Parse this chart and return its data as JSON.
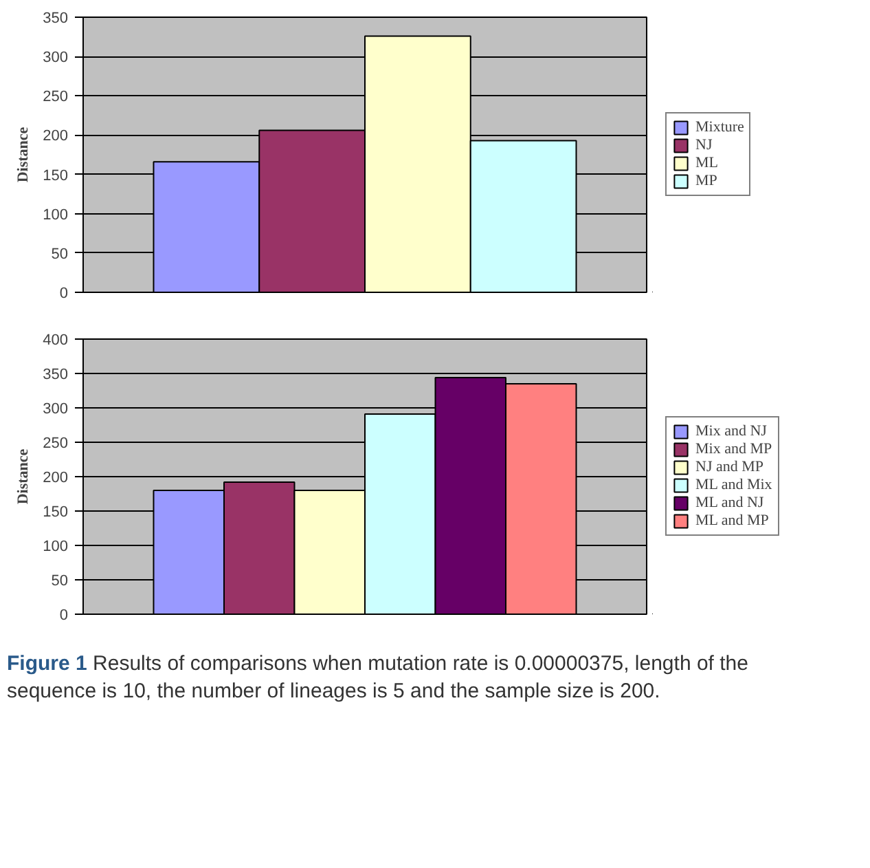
{
  "chart_data": [
    {
      "type": "bar",
      "categories": [
        null
      ],
      "ylabel": "Distance",
      "ylim": [
        0,
        350
      ],
      "yticks": [
        0,
        50,
        100,
        150,
        200,
        250,
        300,
        350
      ],
      "grid": "y",
      "legend": "right",
      "tick_labels": "y",
      "series": [
        {
          "name": "Mixture",
          "color": "#9999ff",
          "values": [
            166
          ]
        },
        {
          "name": "NJ",
          "color": "#993366",
          "values": [
            206
          ]
        },
        {
          "name": "ML",
          "color": "#ffffcc",
          "values": [
            326
          ]
        },
        {
          "name": "MP",
          "color": "#ccffff",
          "values": [
            193
          ]
        }
      ]
    },
    {
      "type": "bar",
      "categories": [
        null
      ],
      "ylabel": "Distance",
      "ylim": [
        0,
        400
      ],
      "yticks": [
        0,
        50,
        100,
        150,
        200,
        250,
        300,
        350,
        400
      ],
      "grid": "y",
      "legend": "right",
      "tick_labels": "y",
      "series": [
        {
          "name": "Mix and NJ",
          "color": "#9999ff",
          "values": [
            180
          ]
        },
        {
          "name": "Mix and MP",
          "color": "#993366",
          "values": [
            192
          ]
        },
        {
          "name": "NJ and MP",
          "color": "#ffffcc",
          "values": [
            180
          ]
        },
        {
          "name": "ML and Mix",
          "color": "#ccffff",
          "values": [
            291
          ]
        },
        {
          "name": "ML and NJ",
          "color": "#660066",
          "values": [
            344
          ]
        },
        {
          "name": "ML and MP",
          "color": "#ff8080",
          "values": [
            335
          ]
        }
      ],
      "annotations": [
        "Figure 1 Results of comparisons when mutation rate is 0.00000375, length of the sequence is 10, the number of lineages is 5 and the sample size is 200."
      ]
    }
  ]
}
